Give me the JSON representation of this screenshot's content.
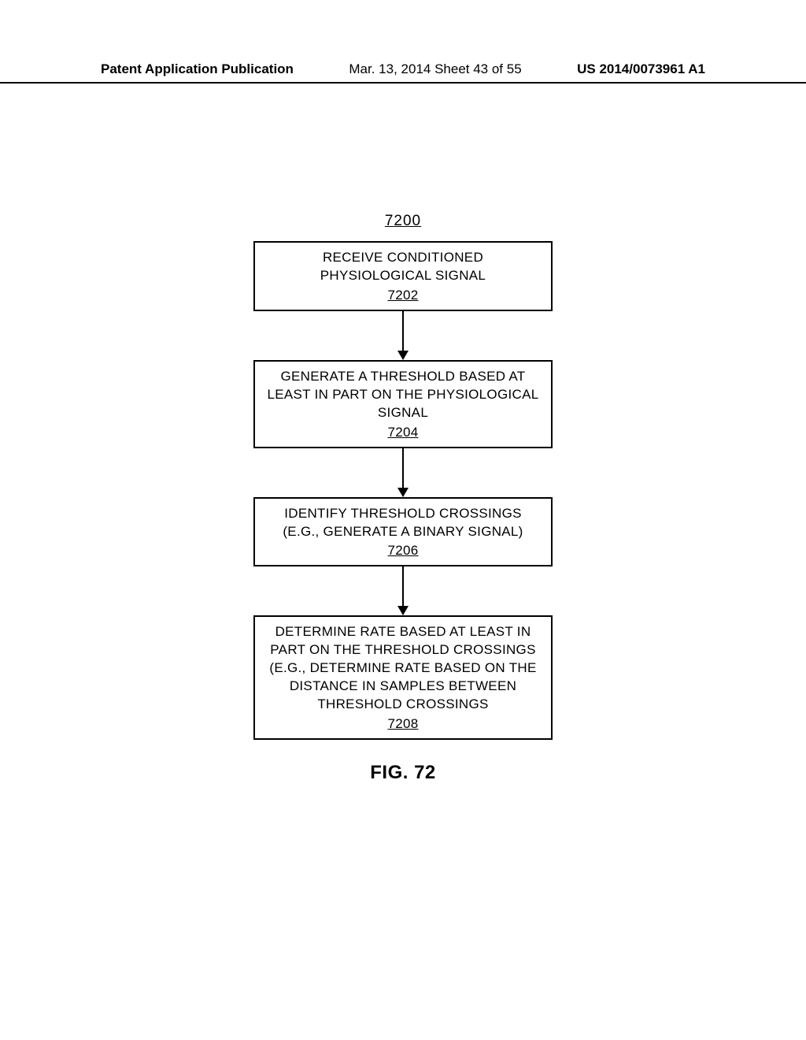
{
  "header": {
    "left": "Patent Application Publication",
    "center": "Mar. 13, 2014  Sheet 43 of 55",
    "right": "US 2014/0073961 A1"
  },
  "figure": {
    "number": "7200",
    "caption": "FIG. 72",
    "box_border_color": "#000000",
    "box_bg_color": "#ffffff",
    "text_color": "#000000",
    "boxes": [
      {
        "text": "RECEIVE CONDITIONED PHYSIOLOGICAL SIGNAL",
        "ref": "7202"
      },
      {
        "text": "GENERATE A THRESHOLD BASED AT LEAST IN PART ON THE PHYSIOLOGICAL SIGNAL",
        "ref": "7204"
      },
      {
        "text": "IDENTIFY THRESHOLD CROSSINGS (E.G., GENERATE A BINARY SIGNAL)",
        "ref": "7206"
      },
      {
        "text": "DETERMINE RATE BASED AT LEAST IN PART ON THE THRESHOLD CROSSINGS (E.G., DETERMINE RATE BASED ON THE DISTANCE IN SAMPLES BETWEEN THRESHOLD CROSSINGS",
        "ref": "7208"
      }
    ]
  }
}
